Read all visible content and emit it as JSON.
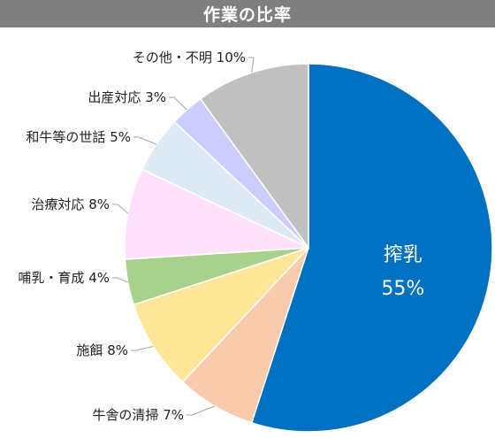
{
  "chart_data": {
    "type": "pie",
    "title": "作業の比率",
    "slices": [
      {
        "name": "搾乳",
        "value": 55,
        "label": "55%",
        "color": "#0070c0",
        "inside": true
      },
      {
        "name": "牛舎の清掃",
        "value": 7,
        "label": "7%",
        "color": "#f8cbad"
      },
      {
        "name": "施餌",
        "value": 8,
        "label": "8%",
        "color": "#ffe699"
      },
      {
        "name": "哺乳・育成",
        "value": 4,
        "label": "4%",
        "color": "#a9d18e"
      },
      {
        "name": "治療対応",
        "value": 8,
        "label": "8%",
        "color": "#ffe1fb"
      },
      {
        "name": "和牛等の世話",
        "value": 5,
        "label": "5%",
        "color": "#deebf7"
      },
      {
        "name": "出産対応",
        "value": 3,
        "label": "3%",
        "color": "#ccccff"
      },
      {
        "name": "その他・不明",
        "value": 10,
        "label": "10%",
        "color": "#c0c0c0"
      }
    ]
  }
}
